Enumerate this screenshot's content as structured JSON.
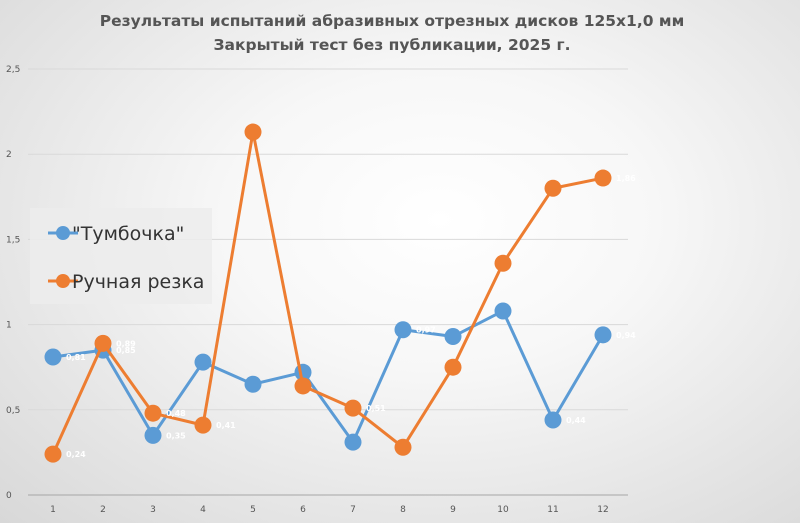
{
  "chart_data": {
    "type": "line",
    "title": "Результаты испытаний абразивных отрезных дисков 125х1,0 мм",
    "subtitle": "Закрытый тест без публикации, 2025 г.",
    "xlabel": "",
    "ylabel": "",
    "categories": [
      "1",
      "2",
      "3",
      "4",
      "5",
      "6",
      "7",
      "8",
      "9",
      "10",
      "11",
      "12"
    ],
    "y_ticks": [
      "0",
      "0,5",
      "1",
      "1,5",
      "2",
      "2,5"
    ],
    "ylim": [
      0,
      2.5
    ],
    "grid": true,
    "legend_position": "left",
    "series": [
      {
        "name": "\"Тумбочка\"",
        "color": "#5b9bd5",
        "values": [
          0.81,
          0.85,
          0.35,
          0.78,
          0.65,
          0.72,
          0.31,
          0.97,
          0.93,
          1.08,
          0.44,
          0.94
        ],
        "labels": [
          "0,81",
          "0,85",
          "0,35",
          "",
          "",
          "",
          "",
          "0,97",
          "",
          "",
          "0,44",
          "0,94"
        ]
      },
      {
        "name": "Ручная резка",
        "color": "#ed7d31",
        "values": [
          0.24,
          0.89,
          0.48,
          0.41,
          2.13,
          0.64,
          0.51,
          0.28,
          0.75,
          1.36,
          1.8,
          1.86
        ],
        "labels": [
          "0,24",
          "0,89",
          "0,48",
          "0,41",
          "",
          "",
          "0,51",
          "",
          "",
          "",
          "",
          "1,86"
        ]
      }
    ]
  }
}
